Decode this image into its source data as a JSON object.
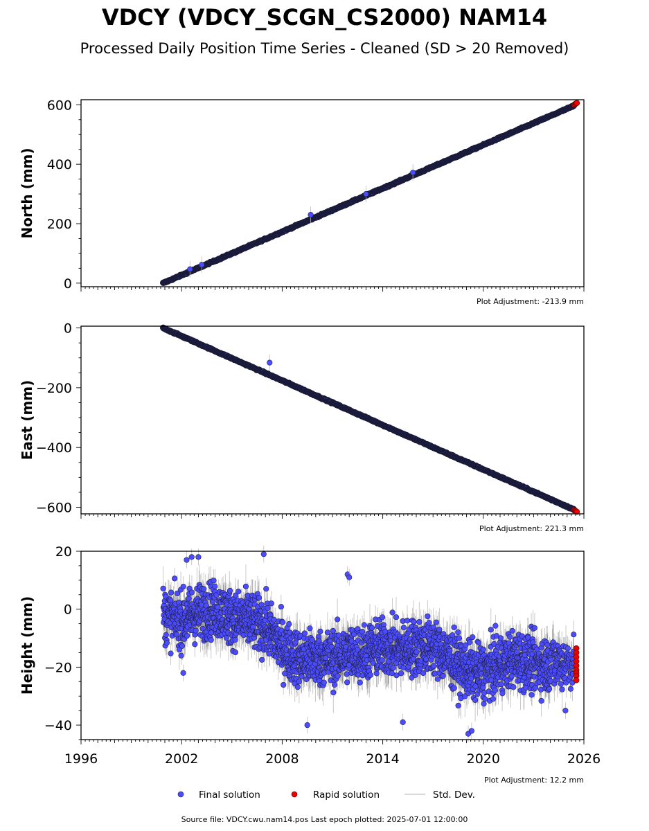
{
  "title": "VDCY (VDCY_SCGN_CS2000) NAM14",
  "subtitle": "Processed Daily Position Time Series - Cleaned (SD > 20 Removed)",
  "source_text": "Source file: VDCY.cwu.nam14.pos  Last epoch plotted: 2025-07-01 12:00:00",
  "legend": {
    "final": "Final solution",
    "rapid": "Rapid solution",
    "std": "Std. Dev."
  },
  "colors": {
    "final": "#4b4bff",
    "rapid": "#ee0000",
    "std": "#bbbbbb",
    "dark_trend": "#1a1a3a"
  },
  "chart_data": [
    {
      "type": "scatter",
      "ylabel": "North (mm)",
      "adjustment": "Plot Adjustment: -213.9 mm",
      "xlim": [
        1996,
        2026
      ],
      "ylim": [
        -12,
        617
      ],
      "yticks": [
        0,
        200,
        400,
        600
      ],
      "ytick_labels": [
        "0",
        "200",
        "400",
        "600"
      ],
      "show_xtick_labels": false,
      "series": [
        {
          "kind": "final_trend",
          "x": [
            2000.9,
            2025.42
          ],
          "values": [
            0,
            597
          ]
        },
        {
          "kind": "final_outlier",
          "x": [
            2002.5,
            2003.2,
            2009.7,
            2013.0,
            2015.8
          ],
          "values": [
            47,
            62,
            230,
            300,
            372
          ]
        },
        {
          "kind": "rapid",
          "x": [
            2025.42,
            2025.46,
            2025.5,
            2025.54,
            2025.58
          ],
          "values": [
            600,
            602,
            603,
            605,
            606
          ]
        }
      ]
    },
    {
      "type": "scatter",
      "ylabel": "East (mm)",
      "adjustment": "Plot Adjustment: 221.3 mm",
      "xlim": [
        1996,
        2026
      ],
      "ylim": [
        -622,
        6
      ],
      "yticks": [
        0,
        -200,
        -400,
        -600
      ],
      "ytick_labels": [
        "0",
        "−200",
        "−400",
        "−600"
      ],
      "show_xtick_labels": false,
      "series": [
        {
          "kind": "final_trend",
          "x": [
            2000.9,
            2025.42
          ],
          "values": [
            0,
            -608
          ]
        },
        {
          "kind": "final_outlier",
          "x": [
            2007.25
          ],
          "values": [
            -116
          ]
        },
        {
          "kind": "rapid",
          "x": [
            2025.42,
            2025.46,
            2025.5,
            2025.54,
            2025.58
          ],
          "values": [
            -609,
            -611,
            -612,
            -614,
            -615
          ]
        }
      ]
    },
    {
      "type": "scatter",
      "ylabel": "Height (mm)",
      "adjustment": "Plot Adjustment: 12.2 mm",
      "xlim": [
        1996,
        2026
      ],
      "ylim": [
        -45,
        20
      ],
      "yticks": [
        20,
        0,
        -20,
        -40
      ],
      "ytick_labels": [
        "20",
        "0",
        "−20",
        "−40"
      ],
      "show_xtick_labels": true,
      "xticks": [
        1996,
        2002,
        2008,
        2014,
        2020,
        2026
      ],
      "xtick_labels": [
        "1996",
        "2002",
        "2008",
        "2014",
        "2020",
        "2026"
      ],
      "series": [
        {
          "kind": "final_cloud",
          "x": [
            2000.9,
            2002.0,
            2003.0,
            2004.0,
            2005.0,
            2006.0,
            2007.0,
            2008.0,
            2009.0,
            2010.0,
            2011.0,
            2012.0,
            2013.0,
            2014.0,
            2015.0,
            2016.0,
            2017.0,
            2018.0,
            2019.0,
            2020.0,
            2021.0,
            2022.0,
            2023.0,
            2024.0,
            2025.42
          ],
          "values": [
            -2,
            -4,
            -1,
            0,
            -3,
            -4,
            -6,
            -13,
            -17,
            -17,
            -17,
            -15,
            -15,
            -13,
            -14,
            -13,
            -13,
            -17,
            -21,
            -22,
            -19,
            -17,
            -19,
            -19,
            -18
          ],
          "spread": 8
        },
        {
          "kind": "final_outlier",
          "x": [
            2002.3,
            2002.6,
            2003.0,
            2006.9,
            2009.5,
            2011.9,
            2015.2,
            2019.1,
            2019.3,
            2002.1,
            2012.0,
            2024.9
          ],
          "values": [
            17,
            18,
            18,
            19,
            -40,
            12,
            -39,
            -43,
            -42,
            -22,
            11,
            -35
          ]
        },
        {
          "kind": "rapid",
          "x": [
            2025.55,
            2025.55,
            2025.55,
            2025.55,
            2025.55,
            2025.55,
            2025.55,
            2025.55,
            2025.55
          ],
          "values": [
            -13.5,
            -15,
            -16.5,
            -18,
            -19.5,
            -21,
            -22,
            -23,
            -24.5
          ]
        }
      ]
    }
  ]
}
